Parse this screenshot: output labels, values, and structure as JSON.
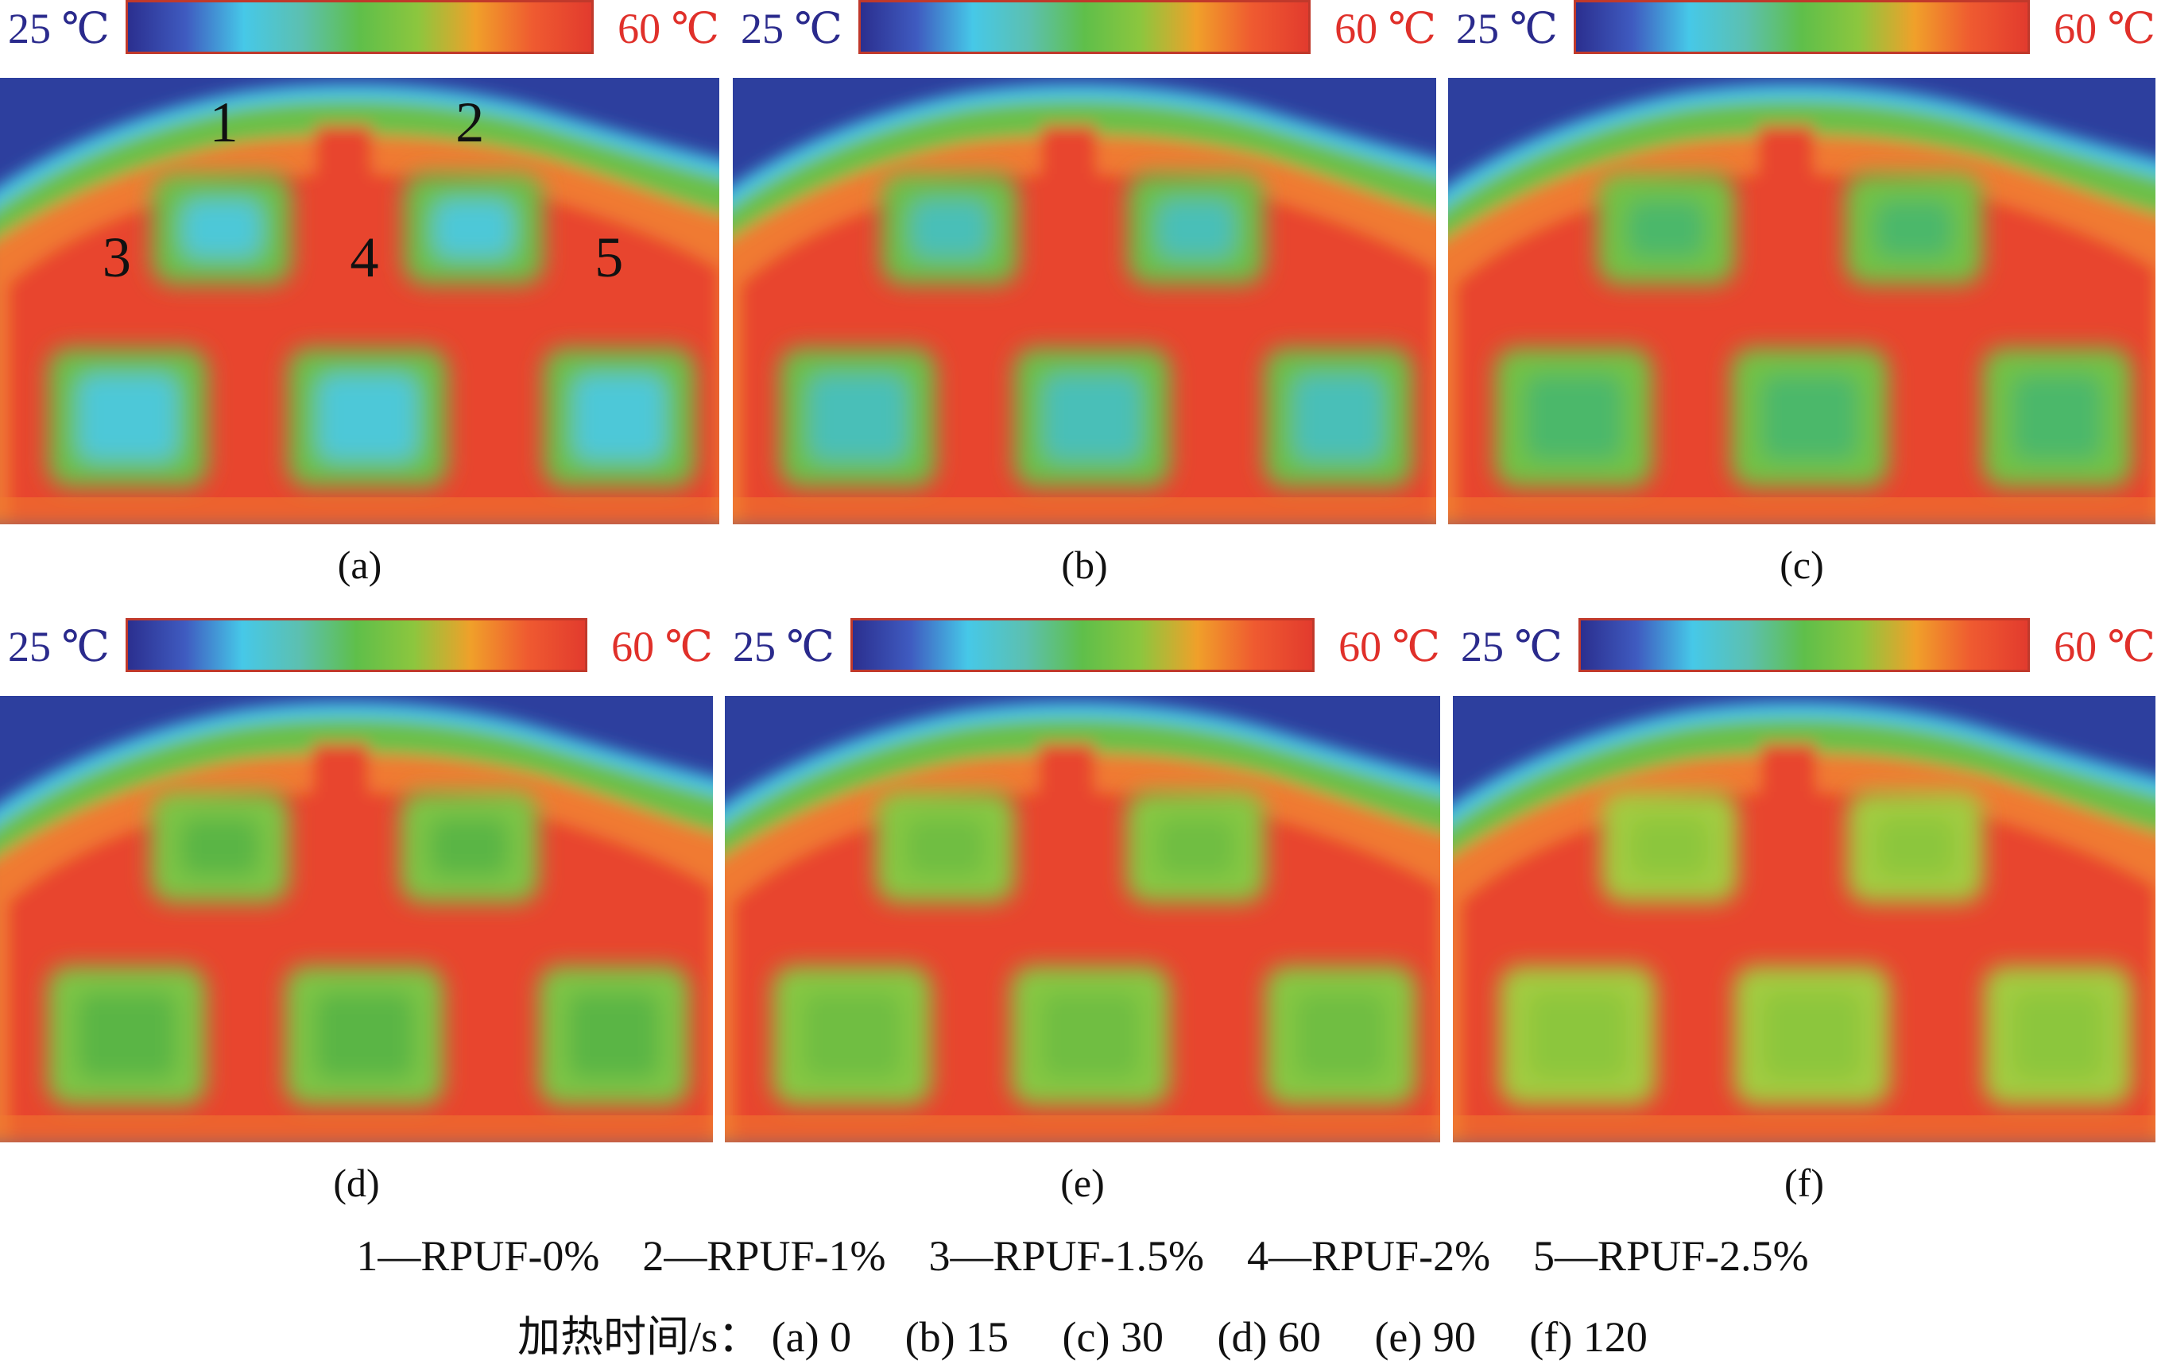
{
  "colorbar": {
    "min_label": "25 ℃",
    "max_label": "60 ℃",
    "stops": [
      "#2b2f8f",
      "#3f5bc0",
      "#46c8e8",
      "#5cc0b0",
      "#5fbf4a",
      "#8cc63e",
      "#f0a02a",
      "#ef5a30",
      "#e23b2e"
    ]
  },
  "panels": [
    {
      "label": "(a)",
      "heating_time_s": 0,
      "frame_hot": "#e8452f",
      "frame_warm": "#f07a30",
      "cell_outer": "#6cc04a",
      "cell_core": "#4ec8d8"
    },
    {
      "label": "(b)",
      "heating_time_s": 15,
      "frame_hot": "#e8452f",
      "frame_warm": "#f07a30",
      "cell_outer": "#6cc04a",
      "cell_core": "#49bfb8"
    },
    {
      "label": "(c)",
      "heating_time_s": 30,
      "frame_hot": "#e8452f",
      "frame_warm": "#f07a30",
      "cell_outer": "#72c245",
      "cell_core": "#4cb86a"
    },
    {
      "label": "(d)",
      "heating_time_s": 60,
      "frame_hot": "#e8452f",
      "frame_warm": "#f07a30",
      "cell_outer": "#7dc544",
      "cell_core": "#5ab545"
    },
    {
      "label": "(e)",
      "heating_time_s": 90,
      "frame_hot": "#e8452f",
      "frame_warm": "#f07a30",
      "cell_outer": "#86c842",
      "cell_core": "#70be42"
    },
    {
      "label": "(f)",
      "heating_time_s": 120,
      "frame_hot": "#e8452f",
      "frame_warm": "#f07a30",
      "cell_outer": "#a2cc40",
      "cell_core": "#8cc63e"
    }
  ],
  "sample_numbers": [
    "1",
    "2",
    "3",
    "4",
    "5"
  ],
  "legend": {
    "samples_line": "1—RPUF-0%    2—RPUF-1%    3—RPUF-1.5%    4—RPUF-2%    5—RPUF-2.5%",
    "time_line": "加热时间/s： (a) 0     (b) 15     (c) 30     (d) 60     (e) 90     (f) 120"
  }
}
